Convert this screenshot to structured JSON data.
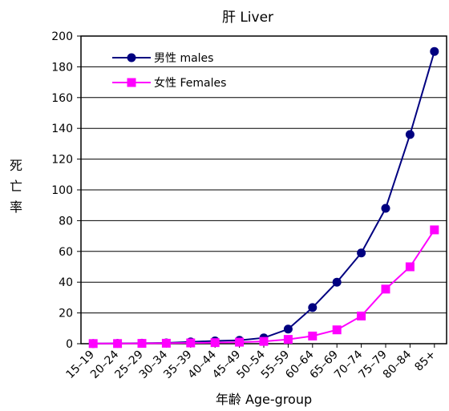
{
  "chart_data": {
    "type": "line",
    "title": "肝 Liver",
    "xlabel": "年齢 Age-group",
    "ylabel": "死亡率",
    "categories": [
      "15–19",
      "20–24",
      "25–29",
      "30–34",
      "35–39",
      "40–44",
      "45–49",
      "50–54",
      "55–59",
      "60–64",
      "65–69",
      "70–74",
      "75–79",
      "80–84",
      "85+"
    ],
    "ylim": [
      0,
      200
    ],
    "yticks": [
      0,
      20,
      40,
      60,
      80,
      100,
      120,
      140,
      160,
      180,
      200
    ],
    "grid": true,
    "legend_position": "top-left",
    "series": [
      {
        "name": "男性 males",
        "color": "#000080",
        "marker": "circle",
        "values": [
          0.1,
          0.2,
          0.3,
          0.5,
          1.2,
          1.8,
          2.2,
          3.8,
          9.5,
          23.5,
          40,
          59,
          88,
          136,
          190
        ]
      },
      {
        "name": "女性 Females",
        "color": "#ff00ff",
        "marker": "square",
        "values": [
          0.1,
          0.1,
          0.2,
          0.3,
          0.5,
          0.7,
          1.0,
          1.5,
          2.8,
          5,
          9,
          18,
          35.5,
          50,
          74
        ]
      }
    ]
  }
}
